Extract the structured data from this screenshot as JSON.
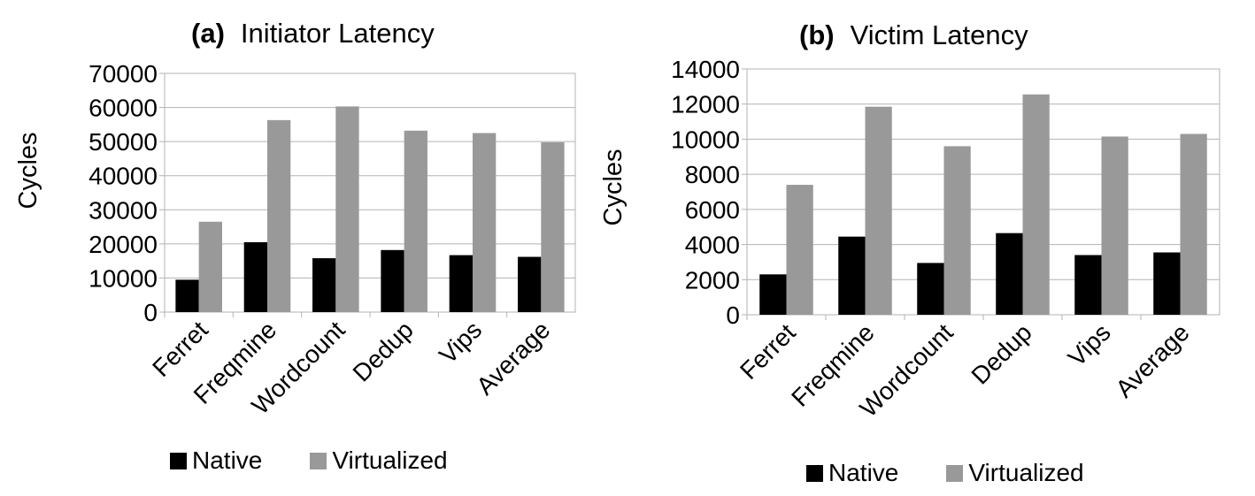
{
  "colors": {
    "native": "#000000",
    "virtualized": "#999999",
    "grid": "#b3b3b3"
  },
  "chart_data": [
    {
      "type": "bar",
      "panel_label": "(a)",
      "title": "Initiator Latency",
      "ylabel": "Cycles",
      "xlabel": "",
      "categories": [
        "Ferret",
        "Freqmine",
        "Wordcount",
        "Dedup",
        "Vips",
        "Average"
      ],
      "series": [
        {
          "name": "Native",
          "values": [
            9500,
            20500,
            15800,
            18200,
            16700,
            16200
          ]
        },
        {
          "name": "Virtualized",
          "values": [
            26500,
            56300,
            60300,
            53200,
            52500,
            49800
          ]
        }
      ],
      "ylim": [
        0,
        70000
      ],
      "yticks": [
        "0",
        "10000",
        "20000",
        "30000",
        "40000",
        "50000",
        "60000",
        "70000"
      ],
      "grid": true,
      "legend": "bottom"
    },
    {
      "type": "bar",
      "panel_label": "(b)",
      "title": "Victim Latency",
      "ylabel": "Cycles",
      "xlabel": "",
      "categories": [
        "Ferret",
        "Freqmine",
        "Wordcount",
        "Dedup",
        "Vips",
        "Average"
      ],
      "series": [
        {
          "name": "Native",
          "values": [
            2300,
            4450,
            2950,
            4650,
            3400,
            3550
          ]
        },
        {
          "name": "Virtualized",
          "values": [
            7400,
            11850,
            9600,
            12550,
            10150,
            10300
          ]
        }
      ],
      "ylim": [
        0,
        14000
      ],
      "yticks": [
        "0",
        "2000",
        "4000",
        "6000",
        "8000",
        "10000",
        "12000",
        "14000"
      ],
      "grid": true,
      "legend": "bottom"
    }
  ]
}
